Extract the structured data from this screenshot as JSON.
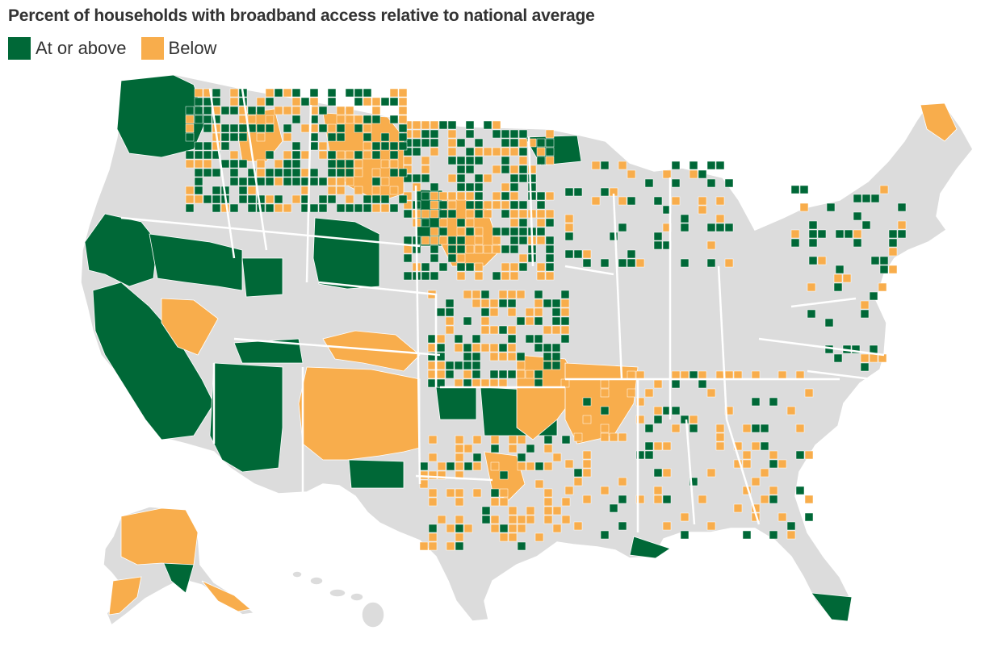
{
  "title": "Percent of households with broadband access relative to national average",
  "legend": [
    {
      "label": "At or above",
      "color": "#006837"
    },
    {
      "label": "Below",
      "color": "#F8AD4C"
    }
  ],
  "colors": {
    "no_data": "#DCDCDC",
    "border": "#ffffff"
  },
  "map": {
    "type": "choropleth",
    "region": "United States counties"
  }
}
